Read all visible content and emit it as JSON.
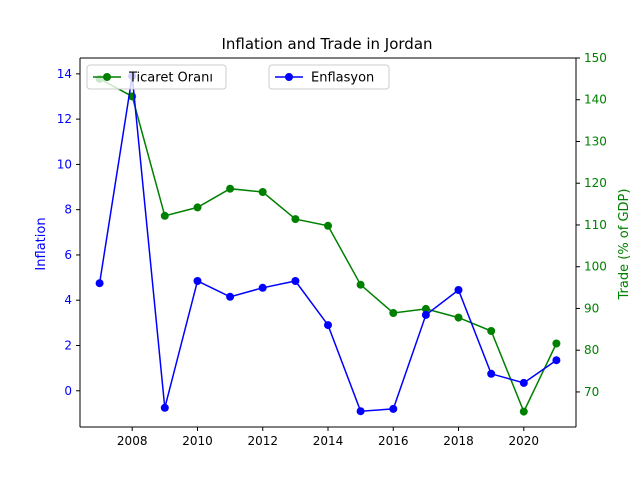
{
  "chart_data": {
    "type": "line",
    "title": "Inflation and Trade in Jordan",
    "x": [
      2007,
      2008,
      2009,
      2010,
      2011,
      2012,
      2013,
      2014,
      2015,
      2016,
      2017,
      2018,
      2019,
      2020,
      2021
    ],
    "x_ticks": [
      "2008",
      "2010",
      "2012",
      "2014",
      "2016",
      "2018",
      "2020"
    ],
    "x_tick_values": [
      2008,
      2010,
      2012,
      2014,
      2016,
      2018,
      2020
    ],
    "xlim": [
      2006.4,
      2021.6
    ],
    "left_axis": {
      "label": "Inflation",
      "color": "#0000ff",
      "ylim": [
        -1.6,
        14.7
      ],
      "ticks": [
        "0",
        "2",
        "4",
        "6",
        "8",
        "10",
        "12",
        "14"
      ],
      "tick_values": [
        0,
        2,
        4,
        6,
        8,
        10,
        12,
        14
      ]
    },
    "right_axis": {
      "label": "Trade (% of GDP)",
      "color": "#008000",
      "ylim": [
        61.6,
        150
      ],
      "ticks": [
        "70",
        "80",
        "90",
        "100",
        "110",
        "120",
        "130",
        "140",
        "150"
      ],
      "tick_values": [
        70,
        80,
        90,
        100,
        110,
        120,
        130,
        140,
        150
      ]
    },
    "series": [
      {
        "name": "Enflasyon",
        "axis": "left",
        "color": "#0000ff",
        "values": [
          4.75,
          13.9,
          -0.75,
          4.85,
          4.15,
          4.55,
          4.85,
          2.9,
          -0.9,
          -0.8,
          3.35,
          4.45,
          0.75,
          0.35,
          1.35
        ]
      },
      {
        "name": "Ticaret Oranı",
        "axis": "right",
        "color": "#008000",
        "values": [
          145,
          140.8,
          112.2,
          114.2,
          118.7,
          117.9,
          111.4,
          109.8,
          95.7,
          88.9,
          89.9,
          87.8,
          84.6,
          65.3,
          81.6
        ]
      }
    ],
    "grid": false,
    "legend": [
      {
        "label": "Ticaret Oranı",
        "color": "#008000",
        "placement": "upper-left"
      },
      {
        "label": "Enflasyon",
        "color": "#0000ff",
        "placement": "upper-center"
      }
    ]
  }
}
